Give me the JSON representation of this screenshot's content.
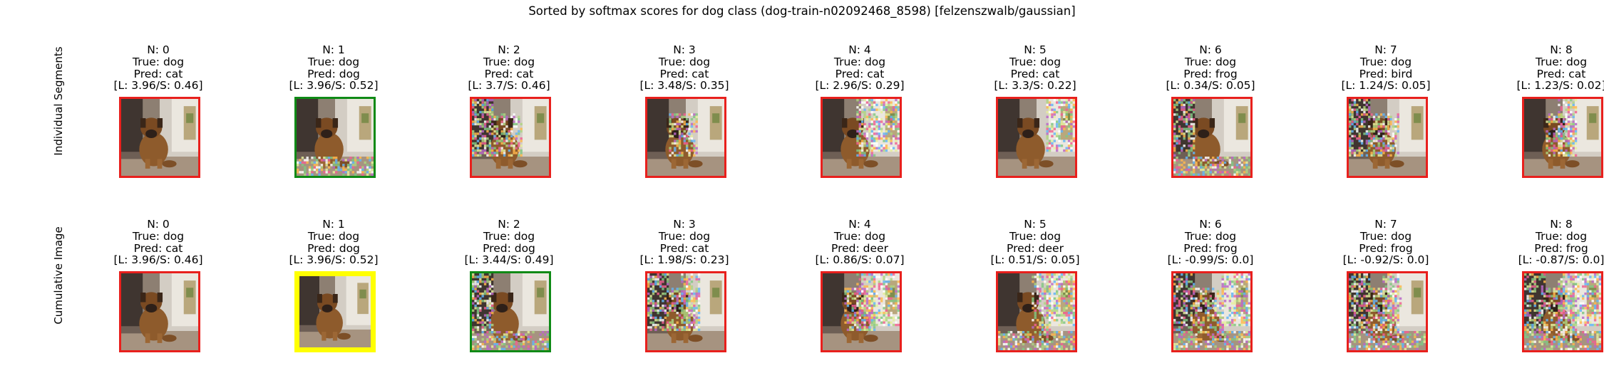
{
  "figure_title": "Sorted by softmax scores for dog class (dog-train-n02092468_8598) [felzenszwalb/gaussian]",
  "row_labels": [
    "Individual Segments",
    "Cumulative Image"
  ],
  "colors": {
    "wrong": "#e8201d",
    "correct": "#0f8a16",
    "best": "#ffff00"
  },
  "rows": [
    {
      "panels": [
        {
          "n": "N: 0",
          "true": "True: dog",
          "pred": "Pred: cat",
          "scores": "[L: 3.96/S: 0.46]",
          "border": "wrong",
          "noise": 0
        },
        {
          "n": "N: 1",
          "true": "True: dog",
          "pred": "Pred: dog",
          "scores": "[L: 3.96/S: 0.52]",
          "border": "correct",
          "noise": 1
        },
        {
          "n": "N: 2",
          "true": "True: dog",
          "pred": "Pred: cat",
          "scores": "[L: 3.7/S: 0.46]",
          "border": "wrong",
          "noise": 2
        },
        {
          "n": "N: 3",
          "true": "True: dog",
          "pred": "Pred: cat",
          "scores": "[L: 3.48/S: 0.35]",
          "border": "wrong",
          "noise": 1
        },
        {
          "n": "N: 4",
          "true": "True: dog",
          "pred": "Pred: cat",
          "scores": "[L: 2.96/S: 0.29]",
          "border": "wrong",
          "noise": 2
        },
        {
          "n": "N: 5",
          "true": "True: dog",
          "pred": "Pred: cat",
          "scores": "[L: 3.3/S: 0.22]",
          "border": "wrong",
          "noise": 1
        },
        {
          "n": "N: 6",
          "true": "True: dog",
          "pred": "Pred: frog",
          "scores": "[L: 0.34/S: 0.05]",
          "border": "wrong",
          "noise": 2
        },
        {
          "n": "N: 7",
          "true": "True: dog",
          "pred": "Pred: bird",
          "scores": "[L: 1.24/S: 0.05]",
          "border": "wrong",
          "noise": 2
        },
        {
          "n": "N: 8",
          "true": "True: dog",
          "pred": "Pred: cat",
          "scores": "[L: 1.23/S: 0.02]",
          "border": "wrong",
          "noise": 2
        }
      ]
    },
    {
      "panels": [
        {
          "n": "N: 0",
          "true": "True: dog",
          "pred": "Pred: cat",
          "scores": "[L: 3.96/S: 0.46]",
          "border": "wrong",
          "noise": 0
        },
        {
          "n": "N: 1",
          "true": "True: dog",
          "pred": "Pred: dog",
          "scores": "[L: 3.96/S: 0.52]",
          "border": "best",
          "noise": 0
        },
        {
          "n": "N: 2",
          "true": "True: dog",
          "pred": "Pred: dog",
          "scores": "[L: 3.44/S: 0.49]",
          "border": "correct",
          "noise": 2
        },
        {
          "n": "N: 3",
          "true": "True: dog",
          "pred": "Pred: cat",
          "scores": "[L: 1.98/S: 0.23]",
          "border": "wrong",
          "noise": 3
        },
        {
          "n": "N: 4",
          "true": "True: dog",
          "pred": "Pred: deer",
          "scores": "[L: 0.86/S: 0.07]",
          "border": "wrong",
          "noise": 3
        },
        {
          "n": "N: 5",
          "true": "True: dog",
          "pred": "Pred: deer",
          "scores": "[L: 0.51/S: 0.05]",
          "border": "wrong",
          "noise": 3
        },
        {
          "n": "N: 6",
          "true": "True: dog",
          "pred": "Pred: frog",
          "scores": "[L: -0.99/S: 0.0]",
          "border": "wrong",
          "noise": 4
        },
        {
          "n": "N: 7",
          "true": "True: dog",
          "pred": "Pred: frog",
          "scores": "[L: -0.92/S: 0.0]",
          "border": "wrong",
          "noise": 4
        },
        {
          "n": "N: 8",
          "true": "True: dog",
          "pred": "Pred: frog",
          "scores": "[L: -0.87/S: 0.0]",
          "border": "wrong",
          "noise": 5
        }
      ]
    }
  ]
}
